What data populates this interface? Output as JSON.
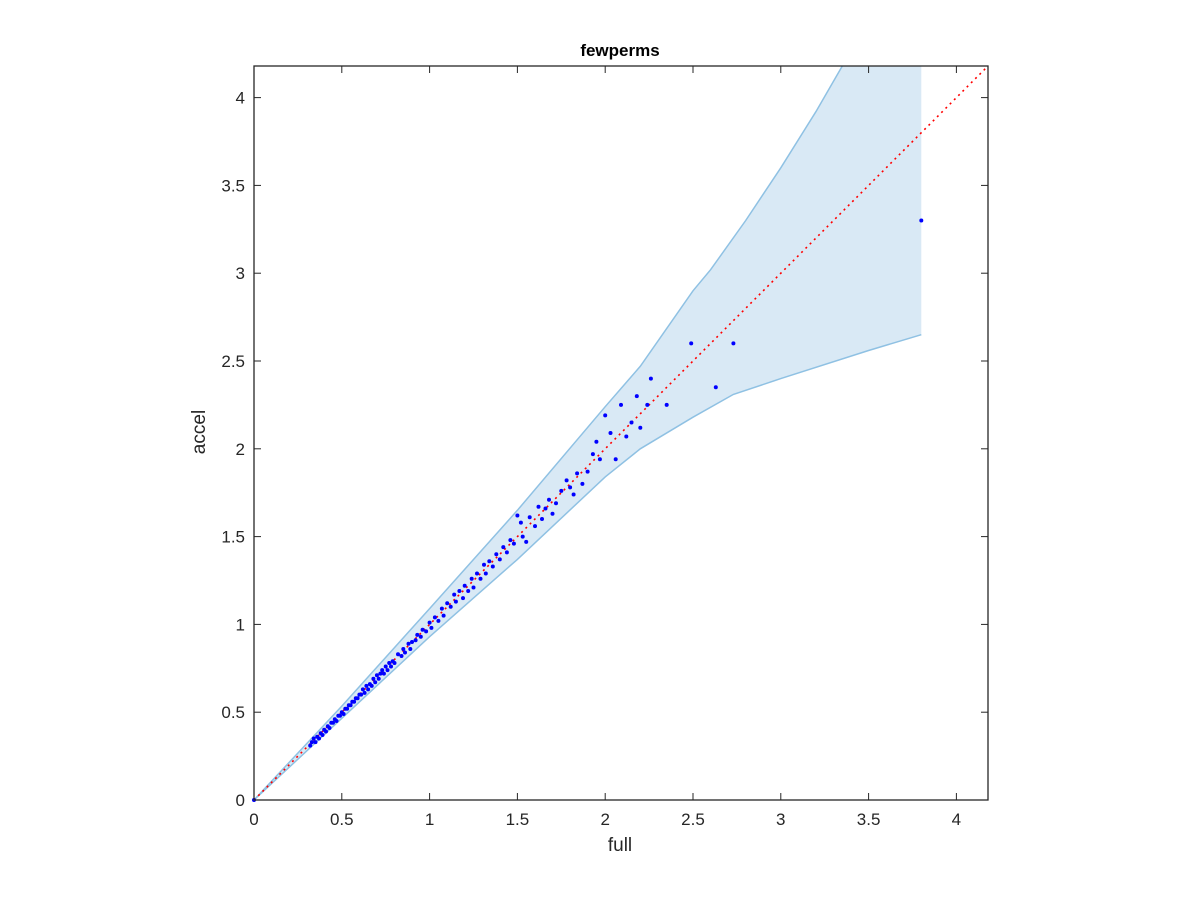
{
  "chart_data": {
    "type": "scatter",
    "title": "fewperms",
    "xlabel": "full",
    "ylabel": "accel",
    "xlim": [
      0,
      4.18
    ],
    "ylim": [
      0,
      4.18
    ],
    "x_ticks": [
      0,
      0.5,
      1,
      1.5,
      2,
      2.5,
      3,
      3.5,
      4
    ],
    "y_ticks": [
      0,
      0.5,
      1,
      1.5,
      2,
      2.5,
      3,
      3.5,
      4
    ],
    "x_tick_labels": [
      "0",
      "0.5",
      "1",
      "1.5",
      "2",
      "2.5",
      "3",
      "3.5",
      "4"
    ],
    "y_tick_labels": [
      "0",
      "0.5",
      "1",
      "1.5",
      "2",
      "2.5",
      "3",
      "3.5",
      "4"
    ],
    "grid": false,
    "colors": {
      "points": "#0000ff",
      "band_fill": "#d9e9f5",
      "band_edge": "#8fc1e3",
      "identity_line": "#ff0000",
      "axes": "#262626"
    },
    "identity_line": {
      "style": "dotted",
      "from": [
        0,
        0
      ],
      "to": [
        4.18,
        4.18
      ]
    },
    "band": {
      "upper": [
        [
          0,
          0
        ],
        [
          0.5,
          0.535
        ],
        [
          1,
          1.09
        ],
        [
          1.5,
          1.65
        ],
        [
          2,
          2.24
        ],
        [
          2.2,
          2.47
        ],
        [
          2.5,
          2.9
        ],
        [
          2.6,
          3.02
        ],
        [
          2.8,
          3.3
        ],
        [
          3.0,
          3.6
        ],
        [
          3.2,
          3.92
        ],
        [
          3.35,
          4.18
        ],
        [
          3.8,
          4.18
        ]
      ],
      "lower": [
        [
          0,
          0
        ],
        [
          0.5,
          0.465
        ],
        [
          1,
          0.93
        ],
        [
          1.5,
          1.37
        ],
        [
          2,
          1.84
        ],
        [
          2.2,
          2.0
        ],
        [
          2.5,
          2.18
        ],
        [
          2.73,
          2.31
        ],
        [
          3.0,
          2.4
        ],
        [
          3.5,
          2.56
        ],
        [
          3.8,
          2.65
        ]
      ]
    },
    "points": [
      [
        0,
        0
      ],
      [
        0.32,
        0.31
      ],
      [
        0.33,
        0.33
      ],
      [
        0.34,
        0.35
      ],
      [
        0.35,
        0.33
      ],
      [
        0.36,
        0.36
      ],
      [
        0.37,
        0.35
      ],
      [
        0.38,
        0.38
      ],
      [
        0.39,
        0.37
      ],
      [
        0.4,
        0.4
      ],
      [
        0.41,
        0.39
      ],
      [
        0.42,
        0.42
      ],
      [
        0.43,
        0.41
      ],
      [
        0.44,
        0.44
      ],
      [
        0.45,
        0.44
      ],
      [
        0.46,
        0.46
      ],
      [
        0.47,
        0.45
      ],
      [
        0.48,
        0.48
      ],
      [
        0.49,
        0.48
      ],
      [
        0.5,
        0.5
      ],
      [
        0.51,
        0.49
      ],
      [
        0.52,
        0.52
      ],
      [
        0.53,
        0.52
      ],
      [
        0.54,
        0.54
      ],
      [
        0.55,
        0.54
      ],
      [
        0.56,
        0.56
      ],
      [
        0.57,
        0.56
      ],
      [
        0.58,
        0.58
      ],
      [
        0.59,
        0.58
      ],
      [
        0.6,
        0.6
      ],
      [
        0.61,
        0.6
      ],
      [
        0.62,
        0.63
      ],
      [
        0.63,
        0.61
      ],
      [
        0.64,
        0.65
      ],
      [
        0.65,
        0.63
      ],
      [
        0.66,
        0.66
      ],
      [
        0.67,
        0.65
      ],
      [
        0.68,
        0.69
      ],
      [
        0.69,
        0.67
      ],
      [
        0.7,
        0.71
      ],
      [
        0.71,
        0.69
      ],
      [
        0.72,
        0.72
      ],
      [
        0.73,
        0.74
      ],
      [
        0.74,
        0.72
      ],
      [
        0.75,
        0.76
      ],
      [
        0.76,
        0.74
      ],
      [
        0.77,
        0.78
      ],
      [
        0.78,
        0.76
      ],
      [
        0.79,
        0.79
      ],
      [
        0.8,
        0.78
      ],
      [
        0.82,
        0.83
      ],
      [
        0.84,
        0.82
      ],
      [
        0.85,
        0.86
      ],
      [
        0.86,
        0.84
      ],
      [
        0.88,
        0.89
      ],
      [
        0.89,
        0.86
      ],
      [
        0.9,
        0.9
      ],
      [
        0.92,
        0.91
      ],
      [
        0.93,
        0.94
      ],
      [
        0.95,
        0.93
      ],
      [
        0.96,
        0.97
      ],
      [
        0.98,
        0.96
      ],
      [
        1.0,
        1.01
      ],
      [
        1.01,
        0.98
      ],
      [
        1.03,
        1.04
      ],
      [
        1.05,
        1.02
      ],
      [
        1.07,
        1.09
      ],
      [
        1.08,
        1.05
      ],
      [
        1.1,
        1.12
      ],
      [
        1.12,
        1.1
      ],
      [
        1.14,
        1.17
      ],
      [
        1.15,
        1.13
      ],
      [
        1.17,
        1.19
      ],
      [
        1.19,
        1.15
      ],
      [
        1.2,
        1.22
      ],
      [
        1.22,
        1.19
      ],
      [
        1.24,
        1.26
      ],
      [
        1.25,
        1.21
      ],
      [
        1.27,
        1.29
      ],
      [
        1.29,
        1.26
      ],
      [
        1.31,
        1.34
      ],
      [
        1.32,
        1.29
      ],
      [
        1.34,
        1.36
      ],
      [
        1.36,
        1.33
      ],
      [
        1.38,
        1.4
      ],
      [
        1.4,
        1.37
      ],
      [
        1.42,
        1.44
      ],
      [
        1.44,
        1.41
      ],
      [
        1.46,
        1.48
      ],
      [
        1.48,
        1.46
      ],
      [
        1.5,
        1.62
      ],
      [
        1.52,
        1.58
      ],
      [
        1.53,
        1.5
      ],
      [
        1.55,
        1.47
      ],
      [
        1.57,
        1.61
      ],
      [
        1.6,
        1.56
      ],
      [
        1.62,
        1.67
      ],
      [
        1.64,
        1.6
      ],
      [
        1.66,
        1.66
      ],
      [
        1.68,
        1.71
      ],
      [
        1.7,
        1.63
      ],
      [
        1.72,
        1.69
      ],
      [
        1.75,
        1.76
      ],
      [
        1.78,
        1.82
      ],
      [
        1.8,
        1.78
      ],
      [
        1.82,
        1.74
      ],
      [
        1.84,
        1.86
      ],
      [
        1.87,
        1.8
      ],
      [
        1.9,
        1.87
      ],
      [
        1.93,
        1.97
      ],
      [
        1.95,
        2.04
      ],
      [
        1.97,
        1.94
      ],
      [
        2.0,
        2.19
      ],
      [
        2.03,
        2.09
      ],
      [
        2.06,
        1.94
      ],
      [
        2.09,
        2.25
      ],
      [
        2.12,
        2.07
      ],
      [
        2.15,
        2.15
      ],
      [
        2.18,
        2.3
      ],
      [
        2.2,
        2.12
      ],
      [
        2.24,
        2.25
      ],
      [
        2.26,
        2.4
      ],
      [
        2.35,
        2.25
      ],
      [
        2.49,
        2.6
      ],
      [
        2.63,
        2.35
      ],
      [
        2.73,
        2.6
      ],
      [
        3.8,
        3.3
      ]
    ]
  }
}
